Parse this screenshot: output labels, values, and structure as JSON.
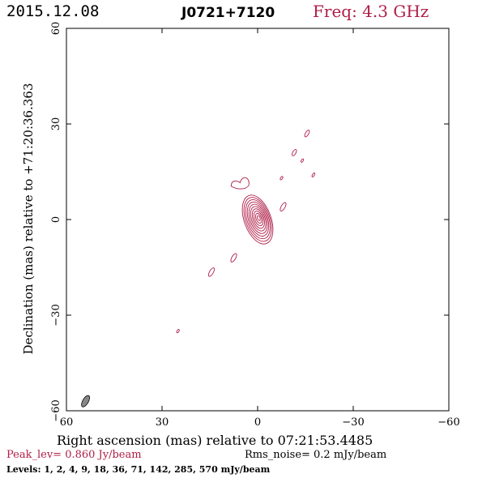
{
  "header": {
    "date": "2015.12.08",
    "source": "J0721+7120",
    "frequency": "Freq: 4.3 GHz"
  },
  "chart_data": {
    "type": "contour",
    "xlabel": "Right ascension (mas) relative to 07:21:53.4485",
    "ylabel": "Declination (mas) relative to +71:20:36.363",
    "xlim": [
      60,
      -60
    ],
    "ylim": [
      -60,
      60
    ],
    "xticks": [
      60,
      30,
      0,
      -30,
      -60
    ],
    "yticks": [
      -60,
      -30,
      0,
      30,
      60
    ],
    "xtick_labels": [
      "60",
      "30",
      "0",
      "−30",
      "−60"
    ],
    "ytick_labels": [
      "−60",
      "−30",
      "0",
      "30",
      "60"
    ],
    "contour_color": "#b01e48",
    "core": {
      "x": 0,
      "y": 0,
      "rx": 4.2,
      "ry": 8,
      "angle": -20
    },
    "core_levels": 10,
    "components": [
      {
        "x": 5.5,
        "y": 11,
        "rx": 2.8,
        "ry": 1.8,
        "angle": 20,
        "type": "blob"
      },
      {
        "x": -8,
        "y": 4,
        "rx": 0.6,
        "ry": 1.5,
        "angle": 30
      },
      {
        "x": -7.5,
        "y": 13,
        "rx": 0.3,
        "ry": 0.6,
        "angle": 30
      },
      {
        "x": -11.5,
        "y": 21,
        "rx": 0.5,
        "ry": 1.1,
        "angle": 30
      },
      {
        "x": -14,
        "y": 18.5,
        "rx": 0.3,
        "ry": 0.6,
        "angle": 30
      },
      {
        "x": -15.5,
        "y": 27,
        "rx": 0.5,
        "ry": 1.2,
        "angle": 30
      },
      {
        "x": -17.5,
        "y": 14,
        "rx": 0.3,
        "ry": 0.7,
        "angle": 30
      },
      {
        "x": 7.5,
        "y": -12,
        "rx": 0.6,
        "ry": 1.5,
        "angle": 30
      },
      {
        "x": 14.5,
        "y": -16.5,
        "rx": 0.6,
        "ry": 1.5,
        "angle": 30
      },
      {
        "x": 25,
        "y": -35,
        "rx": 0.3,
        "ry": 0.6,
        "angle": 30
      }
    ],
    "beam": {
      "x": 54,
      "y": -57,
      "rx": 0.9,
      "ry": 2.0,
      "angle": 30,
      "fill": "#888888"
    }
  },
  "footer": {
    "peak": "Peak_lev=  0.860 Jy/beam",
    "rms": "Rms_noise=  0.2 mJy/beam",
    "levels": "Levels:   1,   2,   4,   9,  18,  36,  71, 142, 285, 570 mJy/beam"
  }
}
